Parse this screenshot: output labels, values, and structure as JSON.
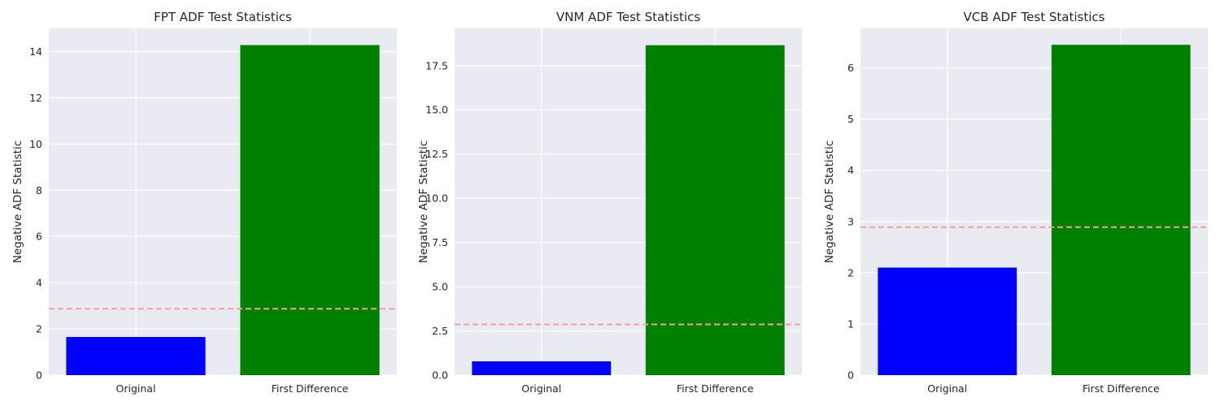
{
  "chart_data": [
    {
      "type": "bar",
      "title": "FPT ADF Test Statistics",
      "xlabel": "",
      "ylabel": "Negative ADF Statistic",
      "categories": [
        "Original",
        "First Difference"
      ],
      "values": [
        1.65,
        14.28
      ],
      "bar_colors": [
        "#0000ff",
        "#008000"
      ],
      "ylim": [
        0,
        15
      ],
      "yticks": [
        0,
        2,
        4,
        6,
        8,
        10,
        12,
        14
      ],
      "ytick_labels": [
        "0",
        "2",
        "4",
        "6",
        "8",
        "10",
        "12",
        "14"
      ],
      "reference_line": {
        "y": 2.87,
        "color": "#f4a0a0",
        "style": "dashed"
      },
      "grid": true
    },
    {
      "type": "bar",
      "title": "VNM ADF Test Statistics",
      "xlabel": "",
      "ylabel": "Negative ADF Statistic",
      "categories": [
        "Original",
        "First Difference"
      ],
      "values": [
        0.78,
        18.65
      ],
      "bar_colors": [
        "#0000ff",
        "#008000"
      ],
      "ylim": [
        0,
        19.6
      ],
      "yticks": [
        0,
        2.5,
        5,
        7.5,
        10,
        12.5,
        15,
        17.5
      ],
      "ytick_labels": [
        "0.0",
        "2.5",
        "5.0",
        "7.5",
        "10.0",
        "12.5",
        "15.0",
        "17.5"
      ],
      "reference_line": {
        "y": 2.87,
        "color": "#f4a0a0",
        "style": "dashed"
      },
      "grid": true
    },
    {
      "type": "bar",
      "title": "VCB ADF Test Statistics",
      "xlabel": "",
      "ylabel": "Negative ADF Statistic",
      "categories": [
        "Original",
        "First Difference"
      ],
      "values": [
        2.1,
        6.45
      ],
      "bar_colors": [
        "#0000ff",
        "#008000"
      ],
      "ylim": [
        0,
        6.77
      ],
      "yticks": [
        0,
        1,
        2,
        3,
        4,
        5,
        6
      ],
      "ytick_labels": [
        "0",
        "1",
        "2",
        "3",
        "4",
        "5",
        "6"
      ],
      "reference_line": {
        "y": 2.89,
        "color": "#f4a0a0",
        "style": "dashed"
      },
      "grid": true
    }
  ]
}
